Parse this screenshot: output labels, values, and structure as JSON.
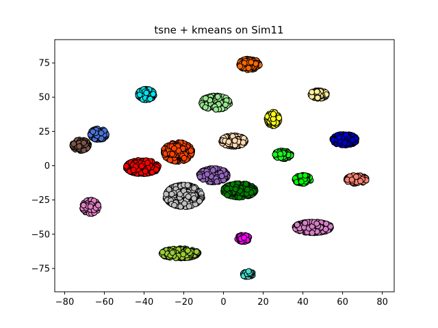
{
  "chart_data": {
    "type": "scatter",
    "title": "tsne + kmeans on Sim11",
    "xlabel": "",
    "ylabel": "",
    "xlim": [
      -85,
      86
    ],
    "ylim": [
      -92,
      92
    ],
    "xticks": [
      -80,
      -60,
      -40,
      -20,
      0,
      20,
      40,
      60,
      80
    ],
    "yticks": [
      -75,
      -50,
      -25,
      0,
      25,
      50,
      75
    ],
    "grid": false,
    "legend": "none",
    "marker_edge_color": "#000000",
    "clusters": [
      {
        "color": "#ff6a00",
        "center": [
          13,
          74
        ],
        "spread": [
          5,
          4
        ],
        "count": 160
      },
      {
        "color": "#00e5ee",
        "center": [
          -39,
          52
        ],
        "spread": [
          4,
          4
        ],
        "count": 140
      },
      {
        "color": "#98e68f",
        "center": [
          -4,
          46
        ],
        "spread": [
          7,
          5
        ],
        "count": 220
      },
      {
        "color": "#ffee99",
        "center": [
          48,
          52
        ],
        "spread": [
          4,
          3
        ],
        "count": 120
      },
      {
        "color": "#ffff1a",
        "center": [
          25,
          34
        ],
        "spread": [
          3,
          5
        ],
        "count": 120
      },
      {
        "color": "#0000cd",
        "center": [
          61,
          19
        ],
        "spread": [
          6,
          4
        ],
        "count": 260
      },
      {
        "color": "#4a73d9",
        "center": [
          -63,
          23
        ],
        "spread": [
          4,
          4
        ],
        "count": 140
      },
      {
        "color": "#7d5649",
        "center": [
          -72,
          15
        ],
        "spread": [
          4,
          4
        ],
        "count": 130
      },
      {
        "color": "#ffdab0",
        "center": [
          5,
          18
        ],
        "spread": [
          6,
          4
        ],
        "count": 170
      },
      {
        "color": "#ff4500",
        "center": [
          -23,
          10
        ],
        "spread": [
          7,
          7
        ],
        "count": 280
      },
      {
        "color": "#ff0000",
        "center": [
          -41,
          -1
        ],
        "spread": [
          8,
          5
        ],
        "count": 320
      },
      {
        "color": "#1aff1a",
        "center": [
          30,
          8
        ],
        "spread": [
          4,
          3
        ],
        "count": 110
      },
      {
        "color": "#9467bd",
        "center": [
          -5,
          -7
        ],
        "spread": [
          7,
          5
        ],
        "count": 240
      },
      {
        "color": "#008000",
        "center": [
          8,
          -18
        ],
        "spread": [
          8,
          5
        ],
        "count": 260
      },
      {
        "color": "#c0c0c0",
        "center": [
          -20,
          -22
        ],
        "spread": [
          9,
          8
        ],
        "count": 380
      },
      {
        "color": "#00ff00",
        "center": [
          40,
          -10
        ],
        "spread": [
          4,
          3
        ],
        "count": 110
      },
      {
        "color": "#fa8072",
        "center": [
          67,
          -10
        ],
        "spread": [
          5,
          3
        ],
        "count": 140
      },
      {
        "color": "#e27fc4",
        "center": [
          -67,
          -30
        ],
        "spread": [
          4,
          5
        ],
        "count": 130
      },
      {
        "color": "#d77fc6",
        "center": [
          45,
          -45
        ],
        "spread": [
          9,
          4
        ],
        "count": 280
      },
      {
        "color": "#ff00ff",
        "center": [
          10,
          -53
        ],
        "spread": [
          3,
          2.5
        ],
        "count": 80
      },
      {
        "color": "#9acd32",
        "center": [
          -22,
          -64
        ],
        "spread": [
          9,
          3.5
        ],
        "count": 260
      },
      {
        "color": "#40e0d0",
        "center": [
          12,
          -79
        ],
        "spread": [
          3,
          2
        ],
        "count": 60
      }
    ]
  }
}
